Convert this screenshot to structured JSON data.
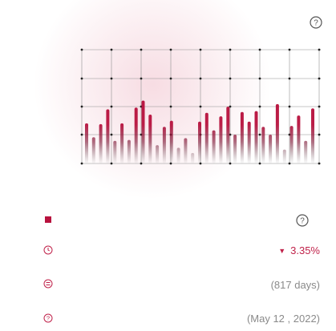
{
  "chart_data": {
    "type": "bar",
    "values": [
      0.46,
      0.3,
      0.45,
      0.62,
      0.26,
      0.46,
      0.27,
      0.64,
      0.72,
      0.56,
      0.21,
      0.42,
      0.49,
      0.18,
      0.29,
      0.12,
      0.48,
      0.58,
      0.38,
      0.54,
      0.65,
      0.33,
      0.59,
      0.48,
      0.6,
      0.42,
      0.33,
      0.68,
      0.16,
      0.43,
      0.55,
      0.26,
      0.63
    ],
    "grid": true,
    "color": "#b8123e"
  },
  "stats": {
    "change": "3.35%",
    "change_direction": "down",
    "duration": "(817 days)",
    "date": "(May 12 , 2022)"
  },
  "colors": {
    "accent": "#b8123e",
    "negative": "#c0224a"
  }
}
